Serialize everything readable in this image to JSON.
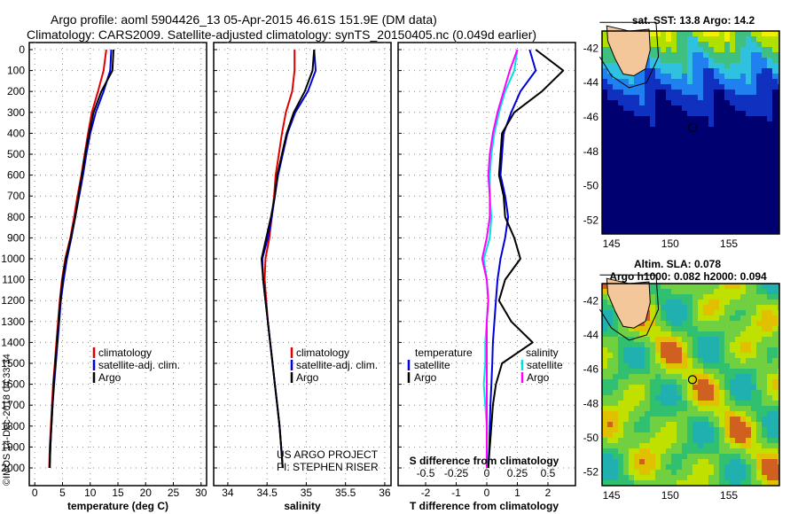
{
  "header": {
    "title_line1": "Argo profile: aoml 5904426_13 05-Apr-2015 46.61S 151.9E (DM data)",
    "title_line2": "Climatology: CARS2009. Satellite-adjusted climatology: synTS_20150405.nc (0.049d earlier)"
  },
  "colors": {
    "climatology": "#e00000",
    "satellite": "#0000dd",
    "argo": "#000000",
    "sat_salinity": "#00e0e0",
    "clim_salinity": "#ff00ff"
  },
  "depth_ticks": [
    "0",
    "100",
    "200",
    "300",
    "400",
    "500",
    "600",
    "700",
    "800",
    "900",
    "1000",
    "1100",
    "1200",
    "1300",
    "1400",
    "1500",
    "1600",
    "1700",
    "1800",
    "1900",
    "2000"
  ],
  "panels": {
    "temperature": {
      "xlabel": "temperature (deg C)",
      "ticks": [
        "0",
        "5",
        "10",
        "15",
        "20",
        "25",
        "30"
      ],
      "legend": [
        "climatology",
        "satellite-adj. clim.",
        "Argo"
      ]
    },
    "salinity": {
      "xlabel": "salinity",
      "ticks": [
        "34",
        "34.5",
        "35",
        "35.5",
        "36"
      ],
      "legend": [
        "climatology",
        "satellite-adj. clim.",
        "Argo"
      ],
      "credit1": "US ARGO PROJECT",
      "credit2": "PI: STEPHEN RISER"
    },
    "difference": {
      "xlabel": "T difference from climatology",
      "ticks": [
        "-2",
        "-1",
        "0",
        "1",
        "2"
      ],
      "s_label": "S difference from climatology",
      "s_ticks": [
        "-0.5",
        "-0.25",
        "0",
        "0.25",
        "0.5"
      ],
      "legend_t_title": "temperature",
      "legend_s_title": "salinity",
      "legend_t": [
        "satellite",
        "Argo"
      ],
      "legend_s": [
        "satellite",
        "Argo"
      ]
    }
  },
  "maps": {
    "sst_title": "sat. SST: 13.8 Argo: 14.2",
    "sla_title1": "Altim. SLA: 0.078",
    "sla_title2": "Argo h1000: 0.082 h2000: 0.094",
    "lat_ticks": [
      "-42",
      "-44",
      "-46",
      "-48",
      "-50",
      "-52"
    ],
    "lon_ticks": [
      "145",
      "150",
      "155"
    ],
    "float_lon": 151.9,
    "float_lat": -46.61
  },
  "credit": "©IMOS 14-Dec-2018 04:33:34",
  "chart_data": [
    {
      "type": "line",
      "title": "",
      "xlabel": "temperature (deg C)",
      "ylabel": "",
      "xlim": [
        -1,
        31
      ],
      "ylim": [
        2060,
        0
      ],
      "series": [
        {
          "name": "climatology",
          "x": [
            12.9,
            12.4,
            11.4,
            10.3,
            9.6,
            9.0,
            8.4,
            7.7,
            7.1,
            6.4,
            5.5,
            4.9,
            4.5,
            4.2,
            3.9,
            3.6,
            3.3,
            3.1,
            2.9,
            2.7,
            2.6
          ],
          "y": [
            0,
            100,
            200,
            300,
            400,
            500,
            600,
            700,
            800,
            900,
            1000,
            1100,
            1200,
            1300,
            1400,
            1500,
            1600,
            1700,
            1800,
            1900,
            2000
          ]
        },
        {
          "name": "satellite-adj. clim.",
          "x": [
            13.8,
            13.6,
            12.4,
            11.0,
            10.0,
            9.3,
            8.7,
            8.0,
            7.3,
            6.6,
            5.8,
            5.2,
            4.7,
            4.4,
            4.1,
            3.8,
            3.5,
            3.2,
            3.0,
            2.8,
            2.7
          ],
          "y": [
            0,
            100,
            200,
            300,
            400,
            500,
            600,
            700,
            800,
            900,
            1000,
            1100,
            1200,
            1300,
            1400,
            1500,
            1600,
            1700,
            1800,
            1900,
            2000
          ]
        },
        {
          "name": "Argo",
          "x": [
            14.2,
            14.0,
            12.0,
            10.6,
            9.8,
            9.1,
            8.5,
            7.9,
            7.3,
            6.5,
            5.6,
            5.0,
            4.6,
            4.3,
            4.0,
            3.7,
            3.4,
            3.2,
            3.0,
            2.8,
            2.7
          ],
          "y": [
            0,
            100,
            200,
            300,
            400,
            500,
            600,
            700,
            800,
            900,
            1000,
            1100,
            1200,
            1300,
            1400,
            1500,
            1600,
            1700,
            1800,
            1900,
            2000
          ]
        }
      ]
    },
    {
      "type": "line",
      "title": "",
      "xlabel": "salinity",
      "ylabel": "",
      "xlim": [
        33.82,
        36.08
      ],
      "ylim": [
        2060,
        0
      ],
      "series": [
        {
          "name": "climatology",
          "x": [
            34.85,
            34.85,
            34.82,
            34.74,
            34.69,
            34.65,
            34.61,
            34.59,
            34.56,
            34.53,
            34.48,
            34.47,
            34.49,
            34.51,
            34.54,
            34.57,
            34.6,
            34.63,
            34.66,
            34.68,
            34.7
          ],
          "y": [
            0,
            100,
            200,
            300,
            400,
            500,
            600,
            700,
            800,
            900,
            1000,
            1100,
            1200,
            1300,
            1400,
            1500,
            1600,
            1700,
            1800,
            1900,
            2000
          ]
        },
        {
          "name": "satellite-adj. clim.",
          "x": [
            35.1,
            35.12,
            35.02,
            34.86,
            34.76,
            34.7,
            34.64,
            34.6,
            34.56,
            34.51,
            34.44,
            34.45,
            34.48,
            34.51,
            34.54,
            34.57,
            34.6,
            34.63,
            34.66,
            34.68,
            34.7
          ],
          "y": [
            0,
            100,
            200,
            300,
            400,
            500,
            600,
            700,
            800,
            900,
            1000,
            1100,
            1200,
            1300,
            1400,
            1500,
            1600,
            1700,
            1800,
            1900,
            2000
          ]
        },
        {
          "name": "Argo",
          "x": [
            35.1,
            35.08,
            34.98,
            34.84,
            34.75,
            34.69,
            34.63,
            34.6,
            34.55,
            34.49,
            34.43,
            34.45,
            34.48,
            34.51,
            34.54,
            34.57,
            34.6,
            34.63,
            34.66,
            34.68,
            34.7
          ],
          "y": [
            0,
            100,
            200,
            300,
            400,
            500,
            600,
            700,
            800,
            900,
            1000,
            1100,
            1200,
            1300,
            1400,
            1500,
            1600,
            1700,
            1800,
            1900,
            2000
          ]
        }
      ]
    },
    {
      "type": "line",
      "title": "",
      "xlabel": "T difference from climatology",
      "ylabel": "",
      "xlim": [
        -2.9,
        2.9
      ],
      "ylim": [
        2060,
        0
      ],
      "series": [
        {
          "name": "temperature satellite",
          "x": [
            1.4,
            1.6,
            1.1,
            0.8,
            0.55,
            0.5,
            0.45,
            0.6,
            0.7,
            0.6,
            0.45,
            0.35,
            0.3,
            0.25,
            0.2,
            0.18,
            0.15,
            0.12,
            0.1,
            0.08,
            0.05
          ],
          "y": [
            0,
            100,
            200,
            300,
            400,
            500,
            600,
            700,
            800,
            900,
            1000,
            1100,
            1200,
            1300,
            1400,
            1500,
            1600,
            1700,
            1800,
            1900,
            2000
          ]
        },
        {
          "name": "temperature Argo",
          "x": [
            1.6,
            2.5,
            1.8,
            0.9,
            0.5,
            0.45,
            0.4,
            0.55,
            0.6,
            0.9,
            1.1,
            0.6,
            0.4,
            0.8,
            1.5,
            0.5,
            0.3,
            0.2,
            0.15,
            0.1,
            0.05
          ],
          "y": [
            0,
            100,
            200,
            300,
            400,
            500,
            600,
            700,
            800,
            900,
            1000,
            1100,
            1200,
            1300,
            1400,
            1500,
            1600,
            1700,
            1800,
            1900,
            2000
          ]
        },
        {
          "name": "salinity satellite",
          "x": [
            1.0,
            0.9,
            0.6,
            0.4,
            0.25,
            0.15,
            0.1,
            0.1,
            0.15,
            0.1,
            -0.1,
            0.0,
            0.05,
            0.0,
            -0.05,
            -0.05,
            -0.1,
            -0.05,
            0.0,
            0.0,
            0.0
          ],
          "y": [
            0,
            100,
            200,
            300,
            400,
            500,
            600,
            700,
            800,
            900,
            1000,
            1100,
            1200,
            1300,
            1400,
            1500,
            1600,
            1700,
            1800,
            1900,
            2000
          ]
        },
        {
          "name": "salinity Argo",
          "x": [
            1.0,
            0.75,
            0.55,
            0.35,
            0.2,
            0.1,
            0.05,
            0.1,
            0.1,
            0.0,
            -0.15,
            0.0,
            0.05,
            0.0,
            0.0,
            0.0,
            0.0,
            0.0,
            0.0,
            0.0,
            0.0
          ],
          "y": [
            0,
            100,
            200,
            300,
            400,
            500,
            600,
            700,
            800,
            900,
            1000,
            1100,
            1200,
            1300,
            1400,
            1500,
            1600,
            1700,
            1800,
            1900,
            2000
          ]
        }
      ]
    }
  ]
}
